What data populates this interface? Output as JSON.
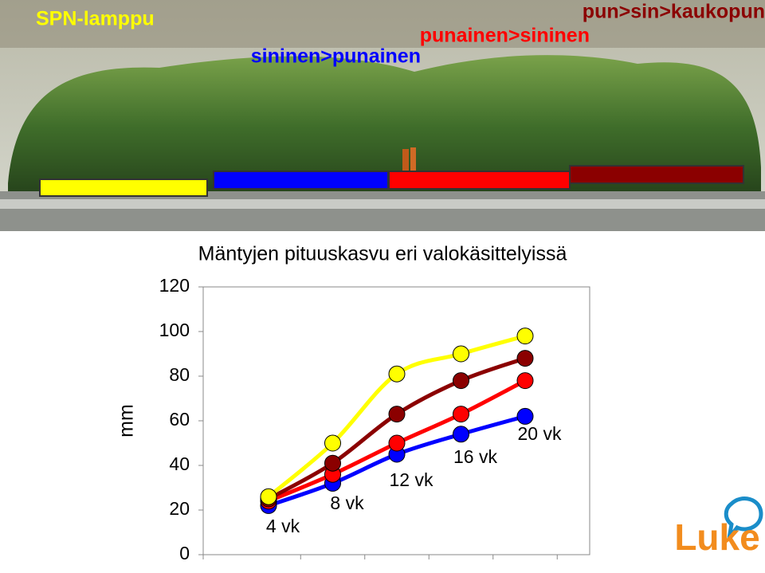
{
  "chart_data": {
    "type": "line",
    "title": "Mäntyjen pituuskasvu eri valokäsittelyissä",
    "y_label": "mm",
    "categories": [
      "4 vk",
      "8 vk",
      "12 vk",
      "16 vk",
      "20 vk"
    ],
    "series": [
      {
        "name": "SPN-lamppu",
        "color": "#ffff00",
        "values": [
          26,
          50,
          81,
          90,
          98
        ]
      },
      {
        "name": "pun>sin>kaukopun",
        "color": "#8b0000",
        "values": [
          25,
          41,
          63,
          78,
          88
        ]
      },
      {
        "name": "punainen>sininen",
        "color": "#ff0000",
        "values": [
          24,
          36,
          50,
          63,
          78
        ]
      },
      {
        "name": "sininen>punainen",
        "color": "#0000ff",
        "values": [
          22,
          32,
          45,
          54,
          62
        ]
      }
    ],
    "ylim": [
      0,
      120
    ],
    "yticks": [
      0,
      20,
      40,
      60,
      80,
      100,
      120
    ]
  },
  "logo": "Luke"
}
